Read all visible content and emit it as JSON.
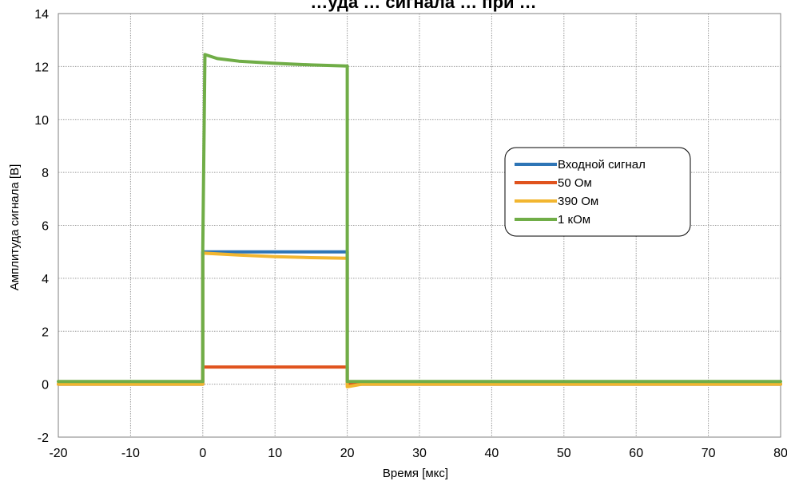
{
  "chart_data": {
    "type": "line",
    "title": "…уда … сигнала … при …",
    "xlabel": "Время [мкс]",
    "ylabel": "Амплитуда сигнала [В]",
    "xlim": [
      -20,
      80
    ],
    "ylim": [
      -2,
      14
    ],
    "xticks": [
      -20,
      -10,
      0,
      10,
      20,
      30,
      40,
      50,
      60,
      70,
      80
    ],
    "yticks": [
      -2,
      0,
      2,
      4,
      6,
      8,
      10,
      12,
      14
    ],
    "grid": true,
    "legend_position": "right",
    "series": [
      {
        "name": "Входной сигнал",
        "color": "#2E75B6",
        "x": [
          -20,
          0,
          0,
          0.5,
          20,
          20,
          80
        ],
        "y": [
          0.0,
          0.0,
          5.0,
          5.0,
          5.0,
          0.0,
          0.0
        ]
      },
      {
        "name": "50 Ом",
        "color": "#E0531E",
        "x": [
          -20,
          0,
          0,
          20,
          20,
          80
        ],
        "y": [
          0.0,
          0.0,
          0.65,
          0.65,
          0.0,
          0.0
        ]
      },
      {
        "name": "390 Ом",
        "color": "#F2B630",
        "x": [
          -20,
          0,
          0,
          5,
          10,
          15,
          20,
          20,
          22,
          80
        ],
        "y": [
          0.0,
          0.0,
          4.95,
          4.88,
          4.82,
          4.78,
          4.76,
          -0.1,
          0.0,
          0.0
        ]
      },
      {
        "name": "1 кОм",
        "color": "#70AD47",
        "x": [
          -20,
          0,
          0,
          0.3,
          2,
          5,
          10,
          15,
          20,
          20,
          80
        ],
        "y": [
          0.1,
          0.1,
          5.1,
          12.45,
          12.3,
          12.2,
          12.12,
          12.06,
          12.02,
          0.1,
          0.1
        ]
      }
    ]
  }
}
